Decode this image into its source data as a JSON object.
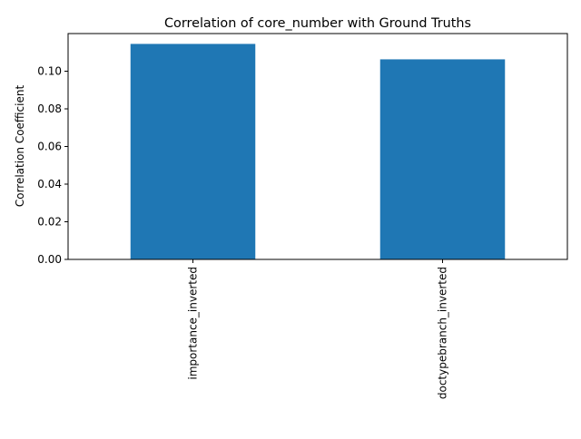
{
  "chart_data": {
    "type": "bar",
    "title": "Correlation of core_number with Ground Truths",
    "xlabel": "",
    "ylabel": "Correlation Coefficient",
    "categories": [
      "importance_inverted",
      "doctypebranch_inverted"
    ],
    "values": [
      0.1145,
      0.1063
    ],
    "ylim": [
      0,
      0.12
    ],
    "yticks": [
      0.0,
      0.02,
      0.04,
      0.06,
      0.08,
      0.1
    ],
    "ytick_labels": [
      "0.00",
      "0.02",
      "0.04",
      "0.06",
      "0.08",
      "0.10"
    ],
    "grid": false,
    "legend": "none",
    "bar_color": "#1f77b4"
  }
}
